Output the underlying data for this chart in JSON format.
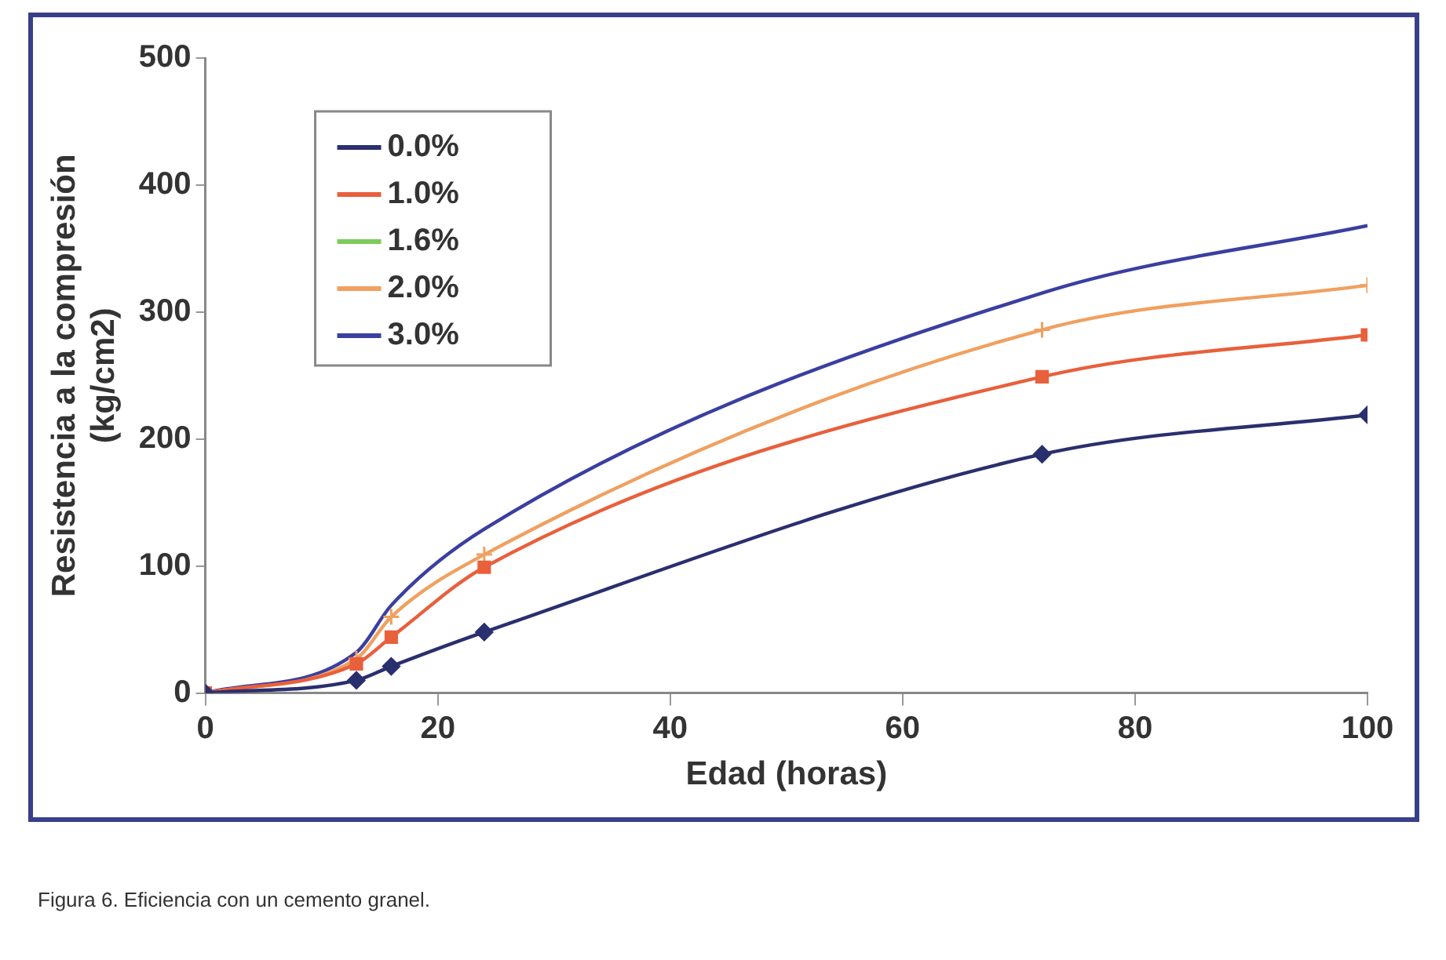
{
  "chart_data": {
    "type": "line",
    "xlabel": "Edad (horas)",
    "ylabel": "Resistencia a la compresión\n(kg/cm2)",
    "x": [
      0,
      13,
      16,
      24,
      72,
      100
    ],
    "series": [
      {
        "name": "0.0%",
        "color": "#2a2f6e",
        "marker": "diamond",
        "values": [
          0,
          10,
          21,
          48,
          188,
          219
        ]
      },
      {
        "name": "1.0%",
        "color": "#e8603c",
        "marker": "square",
        "values": [
          0,
          23,
          44,
          99,
          249,
          282
        ]
      },
      {
        "name": "1.6%",
        "color": "#7ccc5a",
        "marker": "triangle",
        "values": [
          null,
          null,
          null,
          null,
          null,
          null
        ]
      },
      {
        "name": "2.0%",
        "color": "#f0a060",
        "marker": "cross",
        "values": [
          0,
          27,
          60,
          109,
          286,
          321
        ]
      },
      {
        "name": "3.0%",
        "color": "#3a3fa0",
        "marker": "none",
        "values": [
          0,
          32,
          69,
          129,
          315,
          368
        ]
      }
    ],
    "xlim": [
      0,
      100
    ],
    "xticks": [
      0,
      20,
      40,
      60,
      80,
      100
    ],
    "ylim": [
      0,
      500
    ],
    "yticks": [
      0,
      100,
      200,
      300,
      400,
      500
    ],
    "legend": "top left",
    "annotations": [
      "Figura 6. Eficiencia con un cemento granel."
    ]
  }
}
